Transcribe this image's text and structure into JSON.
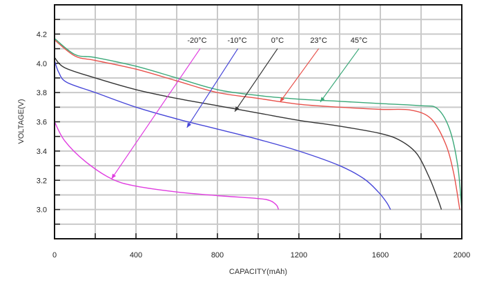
{
  "chart_data": {
    "type": "line",
    "title": "",
    "xlabel": "CAPACITY(mAh)",
    "ylabel": "VOLTAGE(V)",
    "xlim": [
      0,
      2000
    ],
    "ylim": [
      2.8,
      4.4
    ],
    "grid": true,
    "x_ticks": [
      0,
      400,
      800,
      1200,
      1600,
      2000
    ],
    "x_tick_labels": [
      "0",
      "400",
      "800",
      "1200",
      "1600",
      "2000"
    ],
    "y_ticks": [
      3.0,
      3.2,
      3.4,
      3.6,
      3.8,
      4.0,
      4.2
    ],
    "y_tick_labels": [
      "3.0",
      "3.2",
      "3.4",
      "3.6",
      "3.8",
      "4.0",
      "4.2"
    ],
    "series": [
      {
        "name": "-20°C",
        "color": "#e03ce0",
        "x": [
          0,
          50,
          150,
          280,
          400,
          600,
          800,
          1000,
          1060,
          1090,
          1100
        ],
        "y": [
          3.6,
          3.47,
          3.33,
          3.21,
          3.16,
          3.12,
          3.095,
          3.075,
          3.06,
          3.03,
          3.0
        ]
      },
      {
        "name": "-10°C",
        "color": "#4646d8",
        "x": [
          0,
          20,
          60,
          200,
          400,
          600,
          800,
          1000,
          1200,
          1400,
          1520,
          1590,
          1630,
          1650
        ],
        "y": [
          4.02,
          3.94,
          3.87,
          3.8,
          3.7,
          3.62,
          3.55,
          3.48,
          3.4,
          3.3,
          3.21,
          3.12,
          3.05,
          3.0
        ]
      },
      {
        "name": "0°C",
        "color": "#333333",
        "x": [
          0,
          50,
          200,
          400,
          600,
          800,
          1000,
          1200,
          1400,
          1600,
          1700,
          1780,
          1840,
          1880,
          1900
        ],
        "y": [
          4.04,
          3.97,
          3.9,
          3.82,
          3.76,
          3.71,
          3.66,
          3.61,
          3.57,
          3.52,
          3.47,
          3.38,
          3.22,
          3.08,
          3.0
        ]
      },
      {
        "name": "23°C",
        "color": "#e8504a",
        "x": [
          0,
          100,
          200,
          400,
          600,
          800,
          1000,
          1200,
          1400,
          1600,
          1750,
          1850,
          1920,
          1960,
          1990
        ],
        "y": [
          4.16,
          4.05,
          4.02,
          3.96,
          3.88,
          3.8,
          3.76,
          3.72,
          3.7,
          3.685,
          3.68,
          3.62,
          3.45,
          3.25,
          3.0
        ]
      },
      {
        "name": "45°C",
        "color": "#3aa878",
        "x": [
          0,
          100,
          200,
          400,
          600,
          800,
          1000,
          1200,
          1400,
          1600,
          1800,
          1880,
          1940,
          1980,
          2000
        ],
        "y": [
          4.17,
          4.06,
          4.04,
          3.98,
          3.9,
          3.82,
          3.78,
          3.755,
          3.74,
          3.725,
          3.71,
          3.69,
          3.55,
          3.3,
          3.0
        ]
      }
    ],
    "annotations": [
      {
        "text": "-20°C",
        "series": 0,
        "label_at": [
          700,
          4.16
        ],
        "arrow_from": [
          715,
          4.1
        ],
        "arrow_to": [
          280,
          3.21
        ]
      },
      {
        "text": "-10°C",
        "series": 1,
        "label_at": [
          897,
          4.16
        ],
        "arrow_from": [
          900,
          4.1
        ],
        "arrow_to": [
          650,
          3.56
        ]
      },
      {
        "text": "0°C",
        "series": 2,
        "label_at": [
          1095,
          4.16
        ],
        "arrow_from": [
          1095,
          4.1
        ],
        "arrow_to": [
          885,
          3.67
        ]
      },
      {
        "text": "23°C",
        "series": 3,
        "label_at": [
          1297,
          4.16
        ],
        "arrow_from": [
          1297,
          4.1
        ],
        "arrow_to": [
          1107,
          3.735
        ]
      },
      {
        "text": "45°C",
        "series": 4,
        "label_at": [
          1495,
          4.16
        ],
        "arrow_from": [
          1495,
          4.1
        ],
        "arrow_to": [
          1305,
          3.735
        ]
      }
    ]
  }
}
